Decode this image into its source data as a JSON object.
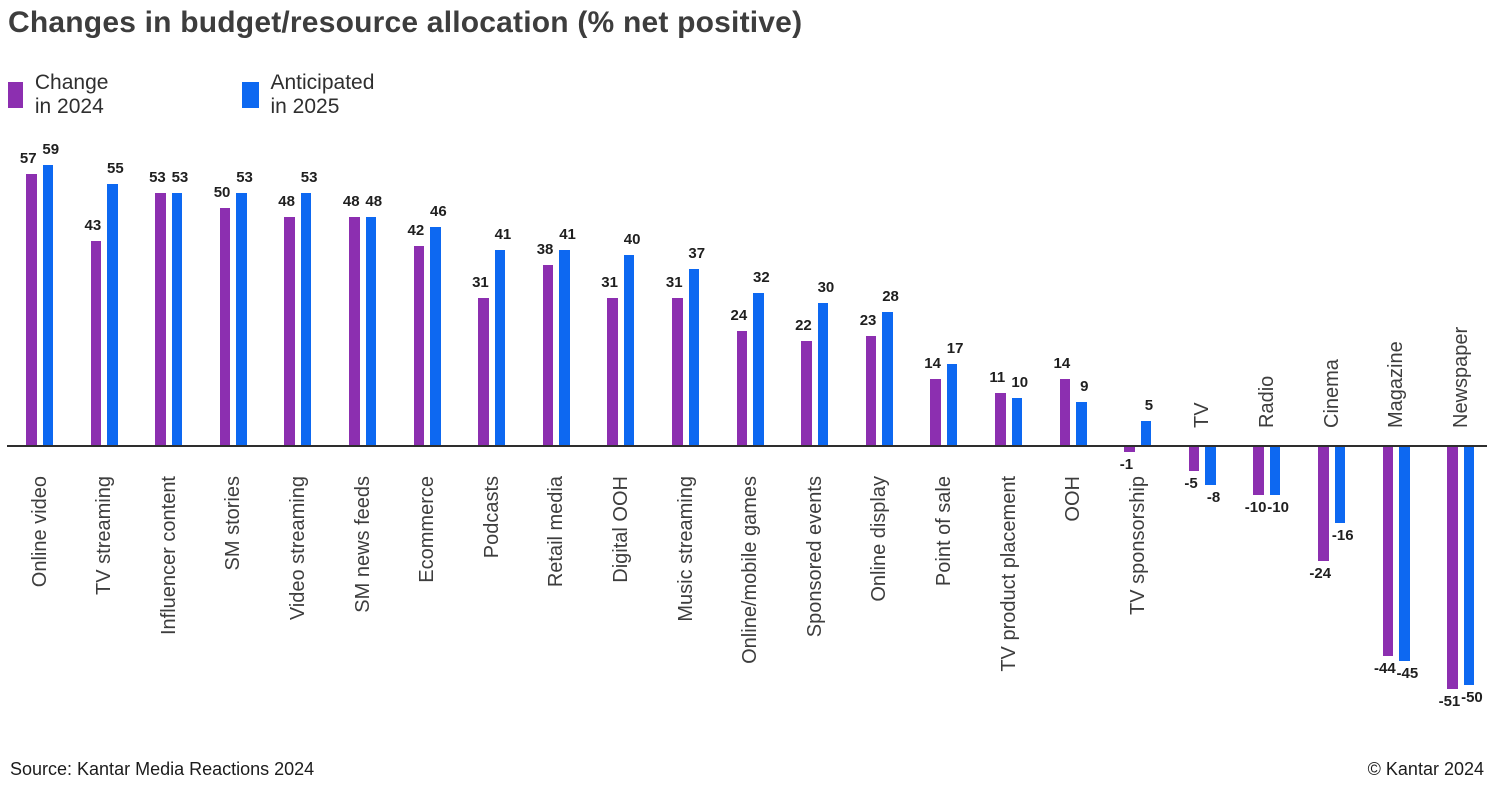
{
  "title": "Changes in budget/resource allocation (% net positive)",
  "legend": {
    "items": [
      {
        "label": "Change in 2024",
        "color": "#8c2fb0"
      },
      {
        "label": "Anticipated in 2025",
        "color": "#0d68f1"
      }
    ]
  },
  "footer": {
    "source": "Source: Kantar Media Reactions 2024",
    "copyright": "© Kantar 2024"
  },
  "colors": {
    "axis": "#2e2e2e",
    "text": "#3d3d3d",
    "value_label": "#1f1f1f"
  },
  "chart_data": {
    "type": "bar",
    "title": "Changes in budget/resource allocation (% net positive)",
    "categories": [
      "Online video",
      "TV streaming",
      "Influencer content",
      "SM stories",
      "Video streaming",
      "SM news feeds",
      "Ecommerce",
      "Podcasts",
      "Retail media",
      "Digital OOH",
      "Music streaming",
      "Online/mobile games",
      "Sponsored events",
      "Online display",
      "Point of sale",
      "TV product placement",
      "OOH",
      "TV sponsorship",
      "TV",
      "Radio",
      "Cinema",
      "Magazine",
      "Newspaper"
    ],
    "series": [
      {
        "name": "Change in 2024",
        "color": "#8c2fb0",
        "values": [
          57,
          43,
          53,
          50,
          48,
          48,
          42,
          31,
          38,
          31,
          31,
          24,
          22,
          23,
          14,
          11,
          14,
          -1,
          -5,
          -10,
          -24,
          -44,
          -51
        ]
      },
      {
        "name": "Anticipated in 2025",
        "color": "#0d68f1",
        "values": [
          59,
          55,
          53,
          53,
          53,
          48,
          46,
          41,
          41,
          40,
          37,
          32,
          30,
          28,
          17,
          10,
          9,
          5,
          -8,
          -10,
          -16,
          -45,
          -50
        ]
      }
    ],
    "xlabel": "",
    "ylabel": "",
    "ylim": [
      -55,
      62
    ],
    "grid": false,
    "legend_position": "top-left",
    "value_labels": true,
    "baseline": 0
  }
}
